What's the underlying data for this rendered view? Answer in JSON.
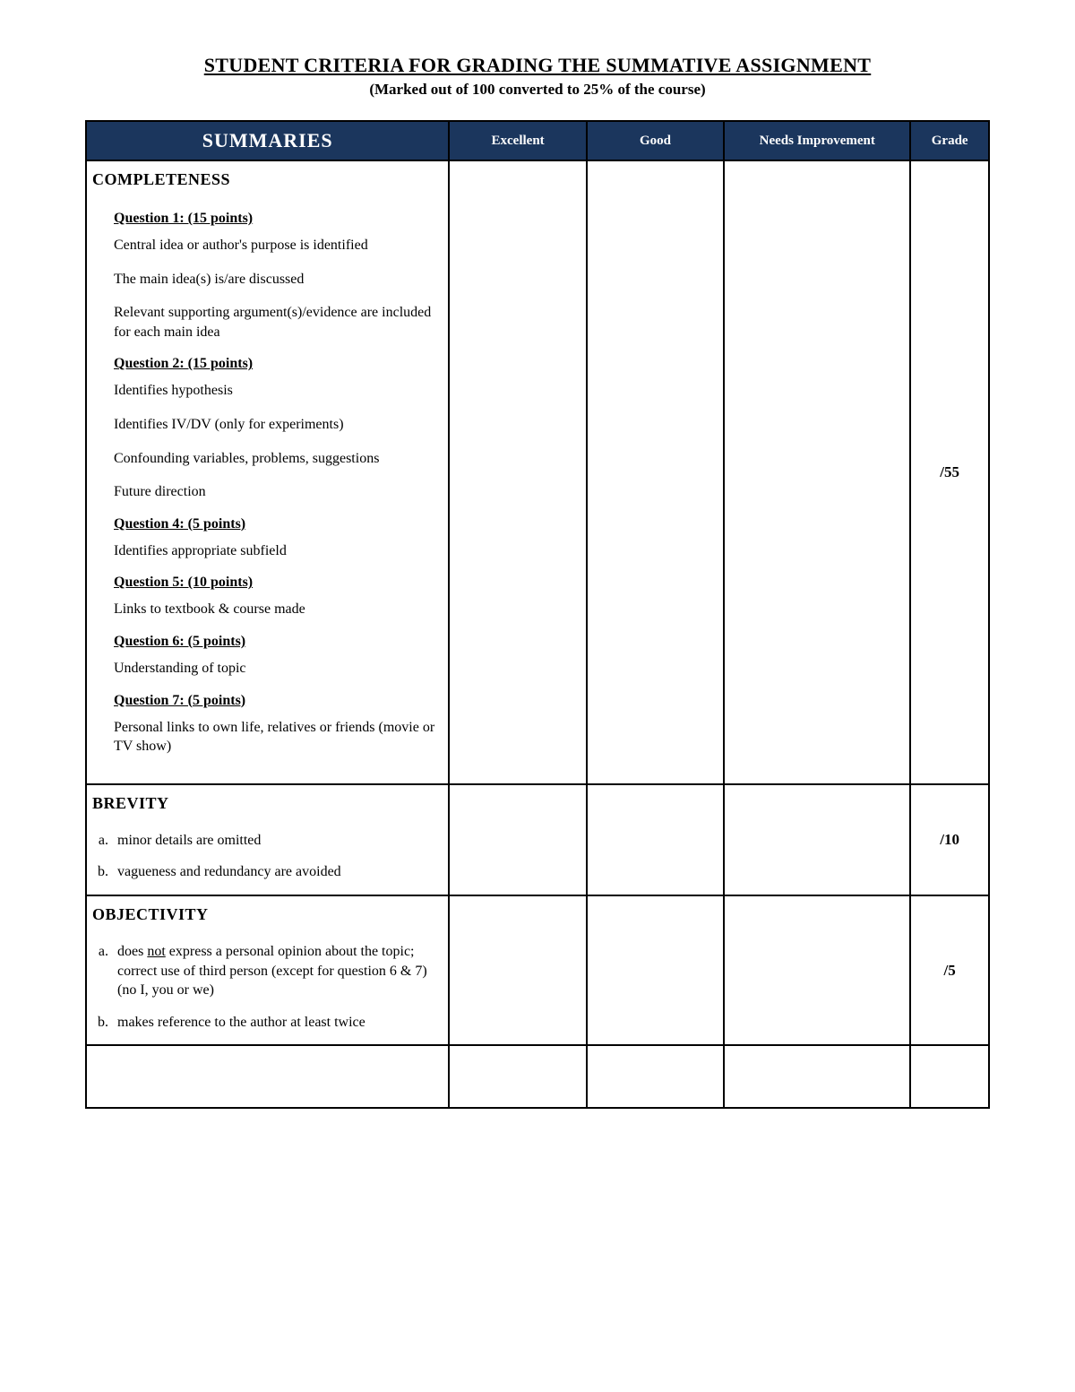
{
  "title": "STUDENT CRITERIA FOR GRADING THE SUMMATIVE ASSIGNMENT",
  "subtitle": "(Marked out of 100 converted to 25% of the course)",
  "colors": {
    "header_bg": "#1b365d",
    "header_text": "#ffffff",
    "border": "#000000",
    "page_bg": "#ffffff"
  },
  "header": {
    "summaries": "SUMMARIES",
    "excellent": "Excellent",
    "good": "Good",
    "needs_improvement": "Needs Improvement",
    "grade": "Grade"
  },
  "sections": {
    "completeness": {
      "heading": "COMPLETENESS",
      "grade": "/55",
      "q1": {
        "heading": "Question 1: (15 points)",
        "items": [
          "Central idea or author's purpose is identified",
          "The main idea(s) is/are discussed",
          "Relevant supporting argument(s)/evidence are included for each main idea"
        ]
      },
      "q2": {
        "heading": "Question 2: (15 points)",
        "items": [
          "Identifies hypothesis",
          "Identifies IV/DV (only for experiments)",
          "Confounding variables, problems, suggestions",
          "Future direction"
        ]
      },
      "q4": {
        "heading": "Question 4: (5 points)",
        "items": [
          "Identifies appropriate subfield"
        ]
      },
      "q5": {
        "heading": "Question 5: (10 points)",
        "items": [
          "Links to textbook & course made"
        ]
      },
      "q6": {
        "heading": "Question 6: (5 points)",
        "items": [
          "Understanding of topic"
        ]
      },
      "q7": {
        "heading": "Question 7: (5 points)",
        "items": [
          "Personal links to own life, relatives or friends (movie or TV show)"
        ]
      }
    },
    "brevity": {
      "heading": "BREVITY",
      "grade": "/10",
      "items": [
        "minor details are omitted",
        "vagueness and redundancy are avoided"
      ]
    },
    "objectivity": {
      "heading": "OBJECTIVITY",
      "grade": "/5",
      "item_a_pre": "does ",
      "item_a_not": "not",
      "item_a_post": " express a personal opinion about the topic; correct use of third person (except for question 6 & 7)",
      "item_a_line2": "(no I, you or we)",
      "item_b": "makes reference to the author at least twice"
    }
  }
}
